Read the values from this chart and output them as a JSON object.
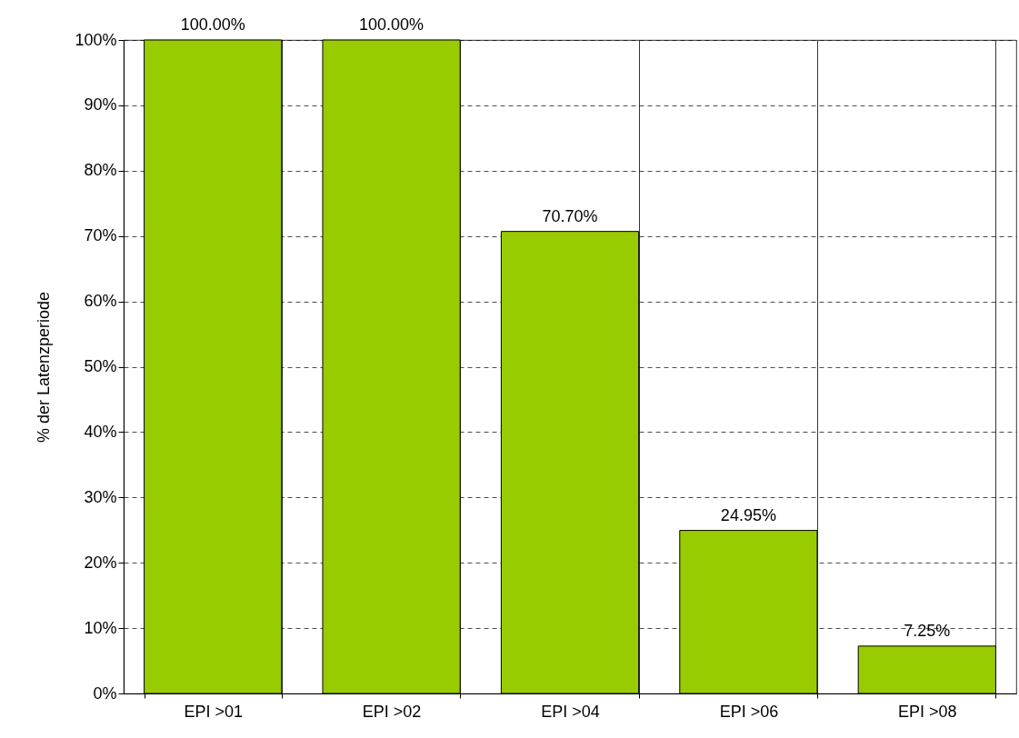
{
  "chart_data": {
    "type": "bar",
    "ylabel": "% der Latenzperiode",
    "categories": [
      "EPI >01",
      "EPI >02",
      "EPI >04",
      "EPI >06",
      "EPI >08"
    ],
    "values": [
      100,
      100,
      70.7,
      24.95,
      7.25
    ],
    "value_labels": [
      "100.00%",
      "100.00%",
      "70.70%",
      "24.95%",
      "7.25%"
    ],
    "color": "#99cc00",
    "ylim": [
      0,
      100
    ],
    "yticks": [
      {
        "value": 0,
        "label": "0%"
      },
      {
        "value": 10,
        "label": "10%"
      },
      {
        "value": 20,
        "label": "20%"
      },
      {
        "value": 30,
        "label": "30%"
      },
      {
        "value": 40,
        "label": "40%"
      },
      {
        "value": 50,
        "label": "50%"
      },
      {
        "value": 60,
        "label": "60%"
      },
      {
        "value": 70,
        "label": "70%"
      },
      {
        "value": 80,
        "label": "80%"
      },
      {
        "value": 90,
        "label": "90%"
      },
      {
        "value": 100,
        "label": "100%"
      }
    ],
    "grid": true
  }
}
